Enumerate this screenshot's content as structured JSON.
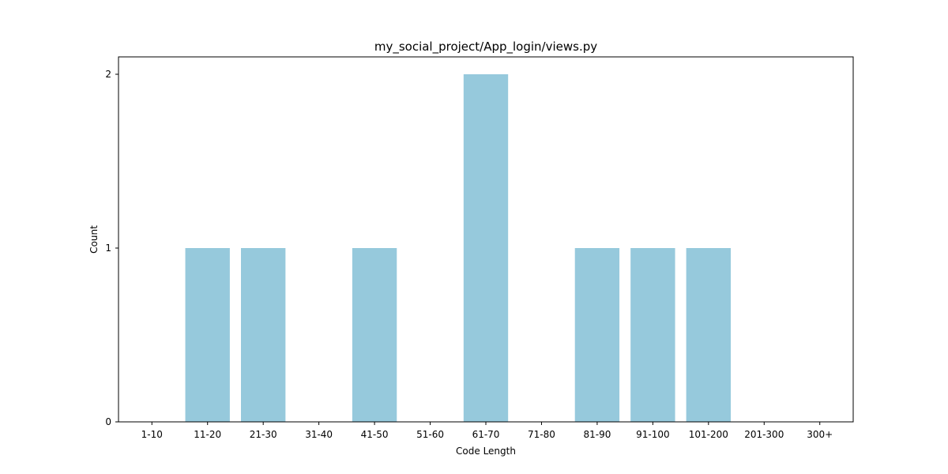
{
  "chart_data": {
    "type": "bar",
    "title": "my_social_project/App_login/views.py",
    "xlabel": "Code Length",
    "ylabel": "Count",
    "categories": [
      "1-10",
      "11-20",
      "21-30",
      "31-40",
      "41-50",
      "51-60",
      "61-70",
      "71-80",
      "81-90",
      "91-100",
      "101-200",
      "201-300",
      "300+"
    ],
    "values": [
      0,
      1,
      1,
      0,
      1,
      0,
      2,
      0,
      1,
      1,
      1,
      0,
      0
    ],
    "ylim": [
      0,
      2.1
    ],
    "yticks": [
      0,
      1,
      2
    ],
    "grid": false,
    "bar_color": "#96c9dc"
  }
}
